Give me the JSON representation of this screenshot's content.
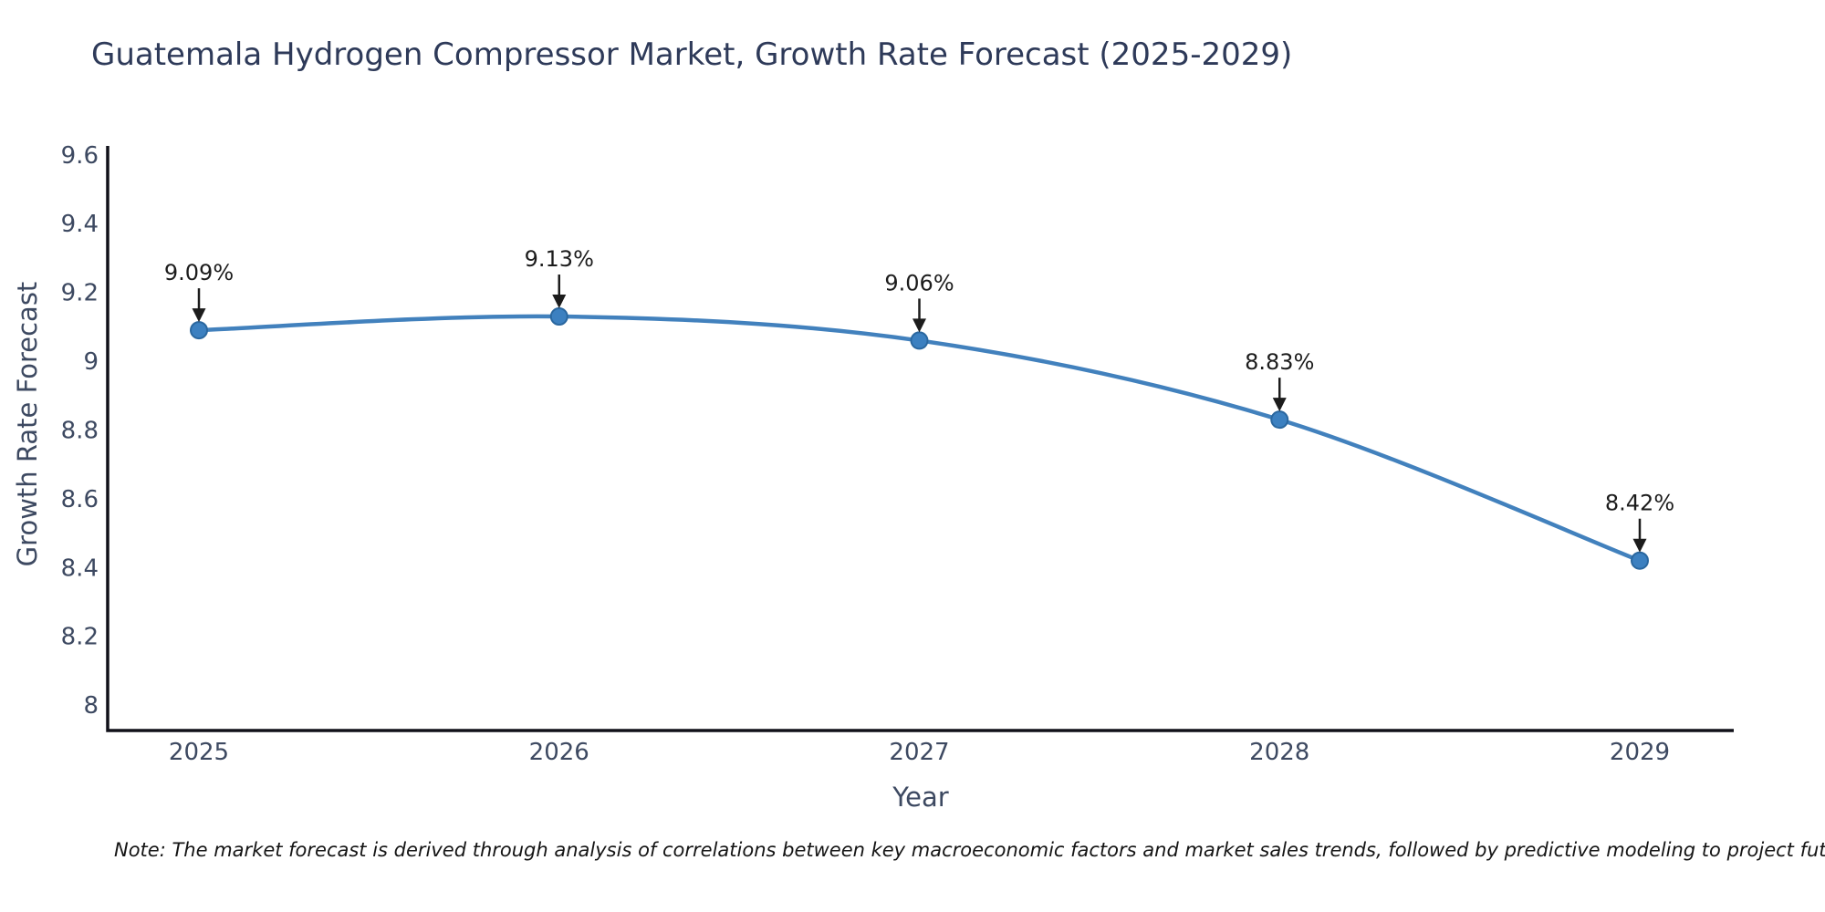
{
  "title": "Guatemala Hydrogen Compressor Market, Growth Rate Forecast (2025-2029)",
  "note": "Note: The market forecast is derived through analysis of correlations between key macroeconomic factors and market sales trends, followed by predictive modeling to project future sales",
  "chart_data": {
    "type": "line",
    "title": "Guatemala Hydrogen Compressor Market, Growth Rate Forecast (2025-2029)",
    "x": [
      "2025",
      "2026",
      "2027",
      "2028",
      "2029"
    ],
    "values": [
      9.09,
      9.13,
      9.06,
      8.83,
      8.42
    ],
    "point_labels": [
      "9.09%",
      "9.13%",
      "9.06%",
      "8.83%",
      "8.42%"
    ],
    "xlabel": "Year",
    "ylabel": "Growth Rate Forecast",
    "yticks": [
      8,
      8.2,
      8.4,
      8.6,
      8.8,
      9,
      9.2,
      9.4,
      9.6
    ],
    "ytick_labels": [
      "8",
      "8.2",
      "8.4",
      "8.6",
      "8.8",
      "9",
      "9.2",
      "9.4",
      "9.6"
    ],
    "ylim": [
      7.93,
      9.63
    ],
    "grid": false,
    "legend": "none",
    "marker_style": "circle-with-down-arrow-annotation",
    "colors": {
      "line": "#4281bd",
      "marker": "#3c80c0",
      "marker_edge": "#2a679f",
      "axis": "#111119",
      "title_text": "#2e3a59",
      "tick_text": "#3d4961",
      "annotation_text": "#1c1c1c",
      "note_text": "#151515",
      "background": "#ffffff"
    }
  }
}
